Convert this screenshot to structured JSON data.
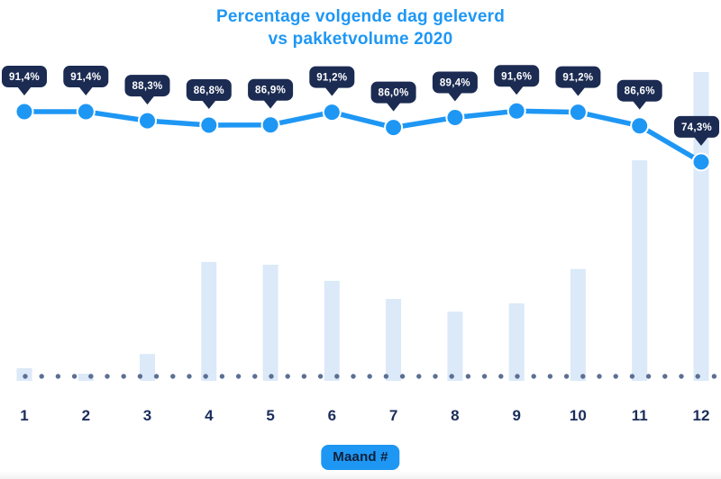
{
  "title": {
    "line1": "Percentage volgende dag geleverd",
    "line2": "vs pakketvolume 2020"
  },
  "x_axis_badge": "Maand #",
  "colors": {
    "accent_blue": "#1e97f4",
    "badge_navy": "#1b2b52",
    "badge_text": "#ffffff",
    "bar_light_blue": "#dbe9f8",
    "baseline_dot_gray": "#5c6f93",
    "axis_label_navy": "#1b2d5b",
    "background": "#ffffff"
  },
  "chart_data": {
    "type": "line+bar combo",
    "title": "Percentage volgende dag geleverd vs pakketvolume 2020",
    "categories": [
      "1",
      "2",
      "3",
      "4",
      "5",
      "6",
      "7",
      "8",
      "9",
      "10",
      "11",
      "12"
    ],
    "series": [
      {
        "name": "percentage-volgende-dag-geleverd",
        "type": "line",
        "values": [
          91.4,
          91.4,
          88.3,
          86.8,
          86.9,
          91.2,
          86.0,
          89.4,
          91.6,
          91.2,
          86.6,
          74.3
        ],
        "labels": [
          "91,4%",
          "91,4%",
          "88,3%",
          "86,8%",
          "86,9%",
          "91,2%",
          "86,0%",
          "89,4%",
          "91,6%",
          "91,2%",
          "86,6%",
          "74,3%"
        ]
      },
      {
        "name": "pakketvolume",
        "type": "bar",
        "values_relative_pct_of_max": [
          4.1,
          2.3,
          8.7,
          38.5,
          37.6,
          32.4,
          26.5,
          22.4,
          25.1,
          36.2,
          71.4,
          100
        ]
      }
    ],
    "xlabel": "Maand #",
    "ylabel": "",
    "legend": "none",
    "gridlines": "none",
    "baseline_style": "dotted"
  }
}
